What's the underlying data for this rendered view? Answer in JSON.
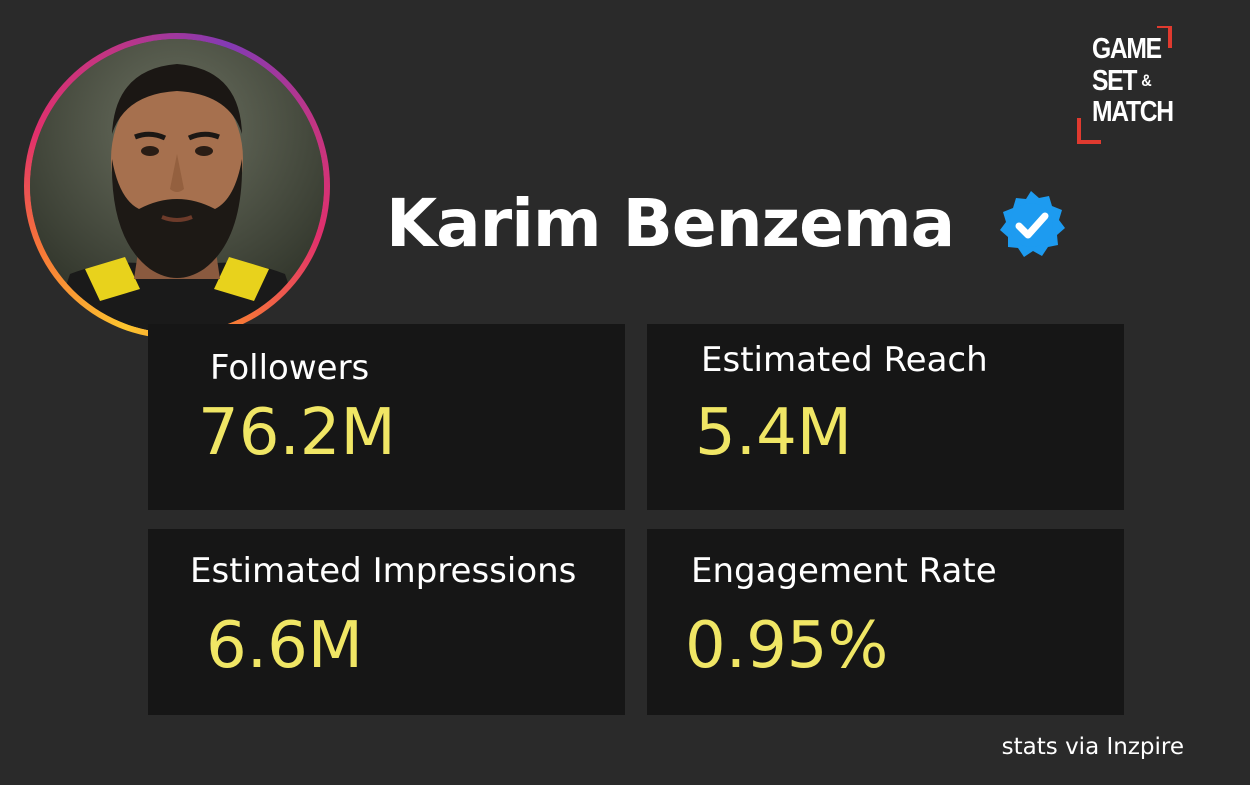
{
  "profile": {
    "name": "Karim Benzema",
    "avatar_icon": "profile-photo",
    "verified_icon": "verified-badge-icon",
    "verified_color": "#1d9bf0",
    "ring_colors": [
      "#fdc52e",
      "#f77737",
      "#e1306c",
      "#c13584",
      "#833ab4"
    ]
  },
  "logo": {
    "line1": "GAME",
    "line2": "SET",
    "amp": "&",
    "line3": "MATCH",
    "accent_color": "#e03a2f"
  },
  "stats": [
    {
      "label": "Followers",
      "value": "76.2M"
    },
    {
      "label": "Estimated Reach",
      "value": "5.4M"
    },
    {
      "label": "Estimated Impressions",
      "value": "6.6M"
    },
    {
      "label": "Engagement Rate",
      "value": "0.95%"
    }
  ],
  "colors": {
    "background": "#2a2a2a",
    "card": "#161616",
    "value": "#f0e665",
    "text": "#ffffff"
  },
  "credit": "stats via Inzpire"
}
